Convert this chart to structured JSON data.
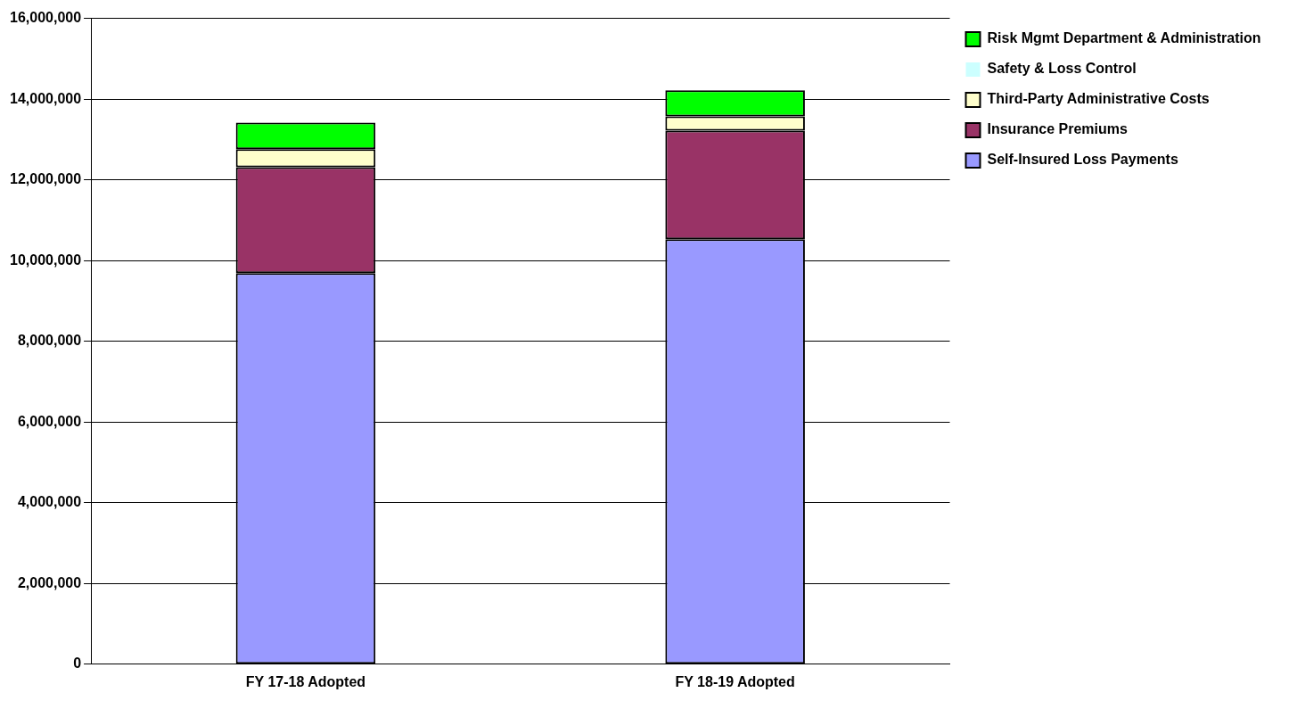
{
  "chart_data": {
    "type": "bar",
    "stacked": true,
    "categories": [
      "FY 17-18 Adopted",
      "FY 18-19 Adopted"
    ],
    "series": [
      {
        "name": "Self-Insured Loss Payments",
        "color": "#9999ff",
        "values": [
          9690000,
          10530000
        ]
      },
      {
        "name": "Insurance Premiums",
        "color": "#993366",
        "values": [
          2620000,
          2690000
        ]
      },
      {
        "name": "Third-Party Administrative Costs",
        "color": "#ffffcc",
        "values": [
          450000,
          350000
        ]
      },
      {
        "name": "Safety & Loss Control",
        "color": "#ccffff",
        "values": [
          0,
          0
        ]
      },
      {
        "name": "Risk Mgmt Department & Administration",
        "color": "#00ff00",
        "values": [
          660000,
          650000
        ]
      }
    ],
    "ylim": [
      0,
      16000000
    ],
    "yticks": [
      0,
      {
        "value": 2000000,
        "label": "2,000,000"
      },
      {
        "value": 4000000,
        "label": "4,000,000"
      },
      {
        "value": 6000000,
        "label": "6,000,000"
      },
      {
        "value": 8000000,
        "label": "8,000,000"
      },
      {
        "value": 10000000,
        "label": "10,000,000"
      },
      {
        "value": 12000000,
        "label": "12,000,000"
      },
      {
        "value": 14000000,
        "label": "14,000,000"
      },
      {
        "value": 16000000,
        "label": "16,000,000"
      }
    ],
    "grid": "y",
    "legend": "top right"
  }
}
